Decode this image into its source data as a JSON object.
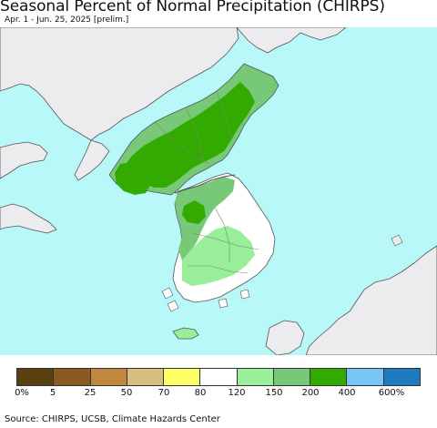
{
  "header": {
    "title": "Seasonal Percent of Normal Precipitation (CHIRPS)",
    "subtitle": "Apr. 1 - Jun. 25, 2025 [prelim.]"
  },
  "map": {
    "colors": {
      "ocean": "#b8f8f8",
      "foreign_land": "#ecebed",
      "border": "#555555",
      "province_line": "#6f8f6f"
    }
  },
  "legend": {
    "colors": [
      "#5a3f10",
      "#8a5a1e",
      "#c0893f",
      "#d6bd80",
      "#ffff66",
      "#ffffff",
      "#99ee99",
      "#77c877",
      "#33aa00",
      "#77c4f6",
      "#1e7bbf"
    ],
    "labels": [
      "0%",
      "5",
      "25",
      "50",
      "70",
      "80",
      "120",
      "150",
      "200",
      "400",
      "600%"
    ]
  },
  "footer": {
    "source": "Source: CHIRPS, UCSB, Climate Hazards Center"
  }
}
